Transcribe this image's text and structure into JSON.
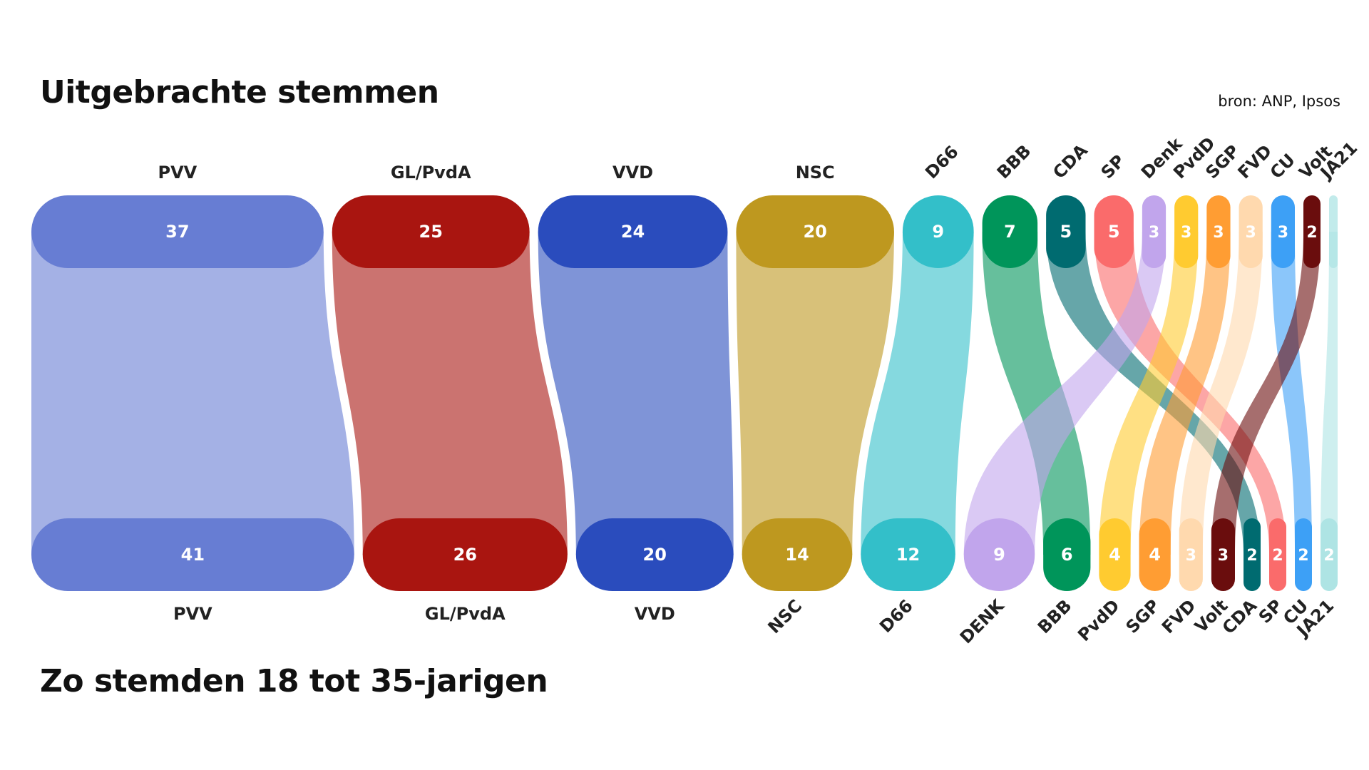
{
  "header": {
    "title": "Uitgebrachte stemmen",
    "source": "bron: ANP, Ipsos"
  },
  "footer": {
    "subtitle": "Zo stemden 18 tot 35-jarigen"
  },
  "chart_data": {
    "type": "sankey",
    "title": "Uitgebrachte stemmen",
    "subtitle": "Zo stemden 18 tot 35-jarigen",
    "top_row": {
      "description": "Uitgebrachte stemmen (alle kiezers)",
      "parties": [
        {
          "party": "PVV",
          "value": 37,
          "color": "#677dd3"
        },
        {
          "party": "GL/PvdA",
          "value": 25,
          "color": "#a91510"
        },
        {
          "party": "VVD",
          "value": 24,
          "color": "#2a4cbd"
        },
        {
          "party": "NSC",
          "value": 20,
          "color": "#be981f"
        },
        {
          "party": "D66",
          "value": 9,
          "color": "#33bfc9"
        },
        {
          "party": "BBB",
          "value": 7,
          "color": "#00955a"
        },
        {
          "party": "CDA",
          "value": 5,
          "color": "#006b70"
        },
        {
          "party": "SP",
          "value": 5,
          "color": "#fa6b6b"
        },
        {
          "party": "Denk",
          "value": 3,
          "color": "#c1a5ec"
        },
        {
          "party": "PvdD",
          "value": 3,
          "color": "#ffcb30"
        },
        {
          "party": "SGP",
          "value": 3,
          "color": "#ff9d33"
        },
        {
          "party": "FVD",
          "value": 3,
          "color": "#ffd9ae"
        },
        {
          "party": "CU",
          "value": 3,
          "color": "#3da0f6"
        },
        {
          "party": "Volt",
          "value": 2,
          "color": "#6a0d0d"
        },
        {
          "party": "JA21",
          "value": 0,
          "color": "#aee4e4"
        }
      ]
    },
    "bottom_row": {
      "description": "Zo stemden 18 tot 35-jarigen",
      "parties": [
        {
          "party": "PVV",
          "value": 41,
          "color": "#677dd3"
        },
        {
          "party": "GL/PvdA",
          "value": 26,
          "color": "#a91510"
        },
        {
          "party": "VVD",
          "value": 20,
          "color": "#2a4cbd"
        },
        {
          "party": "NSC",
          "value": 14,
          "color": "#be981f"
        },
        {
          "party": "D66",
          "value": 12,
          "color": "#33bfc9"
        },
        {
          "party": "DENK",
          "value": 9,
          "color": "#c1a5ec"
        },
        {
          "party": "BBB",
          "value": 6,
          "color": "#00955a"
        },
        {
          "party": "PvdD",
          "value": 4,
          "color": "#ffcb30"
        },
        {
          "party": "SGP",
          "value": 4,
          "color": "#ff9d33"
        },
        {
          "party": "FVD",
          "value": 3,
          "color": "#ffd9ae"
        },
        {
          "party": "Volt",
          "value": 3,
          "color": "#6a0d0d"
        },
        {
          "party": "CDA",
          "value": 2,
          "color": "#006b70"
        },
        {
          "party": "SP",
          "value": 2,
          "color": "#fa6b6b"
        },
        {
          "party": "CU",
          "value": 2,
          "color": "#3da0f6"
        },
        {
          "party": "JA21",
          "value": 2,
          "color": "#aee4e4"
        }
      ]
    },
    "flows": [
      {
        "from": 0,
        "to": 0
      },
      {
        "from": 1,
        "to": 1
      },
      {
        "from": 2,
        "to": 2
      },
      {
        "from": 3,
        "to": 3
      },
      {
        "from": 4,
        "to": 4
      },
      {
        "from": 5,
        "to": 6
      },
      {
        "from": 6,
        "to": 11
      },
      {
        "from": 7,
        "to": 12
      },
      {
        "from": 8,
        "to": 5
      },
      {
        "from": 9,
        "to": 7
      },
      {
        "from": 10,
        "to": 8
      },
      {
        "from": 11,
        "to": 9
      },
      {
        "from": 12,
        "to": 13
      },
      {
        "from": 13,
        "to": 10
      },
      {
        "from": 14,
        "to": 14
      }
    ]
  }
}
